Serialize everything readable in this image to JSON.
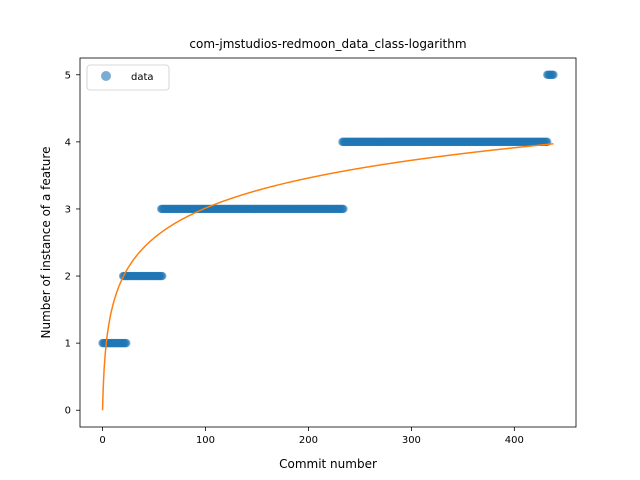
{
  "chart_data": {
    "type": "scatter",
    "title": "com-jmstudios-redmoon_data_class-logarithm",
    "xlabel": "Commit number",
    "ylabel": "Number of instance of a feature",
    "xlim": [
      -21.9,
      459.9
    ],
    "ylim": [
      -0.25,
      5.25
    ],
    "x_ticks": [
      0,
      100,
      200,
      300,
      400
    ],
    "y_ticks": [
      0,
      1,
      2,
      3,
      4,
      5
    ],
    "legend": {
      "placement": "upper-left",
      "entries": [
        "data"
      ]
    },
    "series": [
      {
        "name": "data",
        "kind": "scatter",
        "color": "#1f77b4",
        "alpha": 0.6,
        "steps": [
          {
            "y": 1,
            "x_start": 0,
            "x_end": 23
          },
          {
            "y": 2,
            "x_start": 20,
            "x_end": 58
          },
          {
            "y": 3,
            "x_start": 57,
            "x_end": 234
          },
          {
            "y": 4,
            "x_start": 233,
            "x_end": 432
          },
          {
            "y": 5,
            "x_start": 432,
            "x_end": 438
          }
        ]
      },
      {
        "kind": "line",
        "color": "#ff7f0e",
        "fit": {
          "a": 0.6527,
          "b": 1,
          "x_start": 0,
          "x_end": 438
        }
      }
    ]
  }
}
